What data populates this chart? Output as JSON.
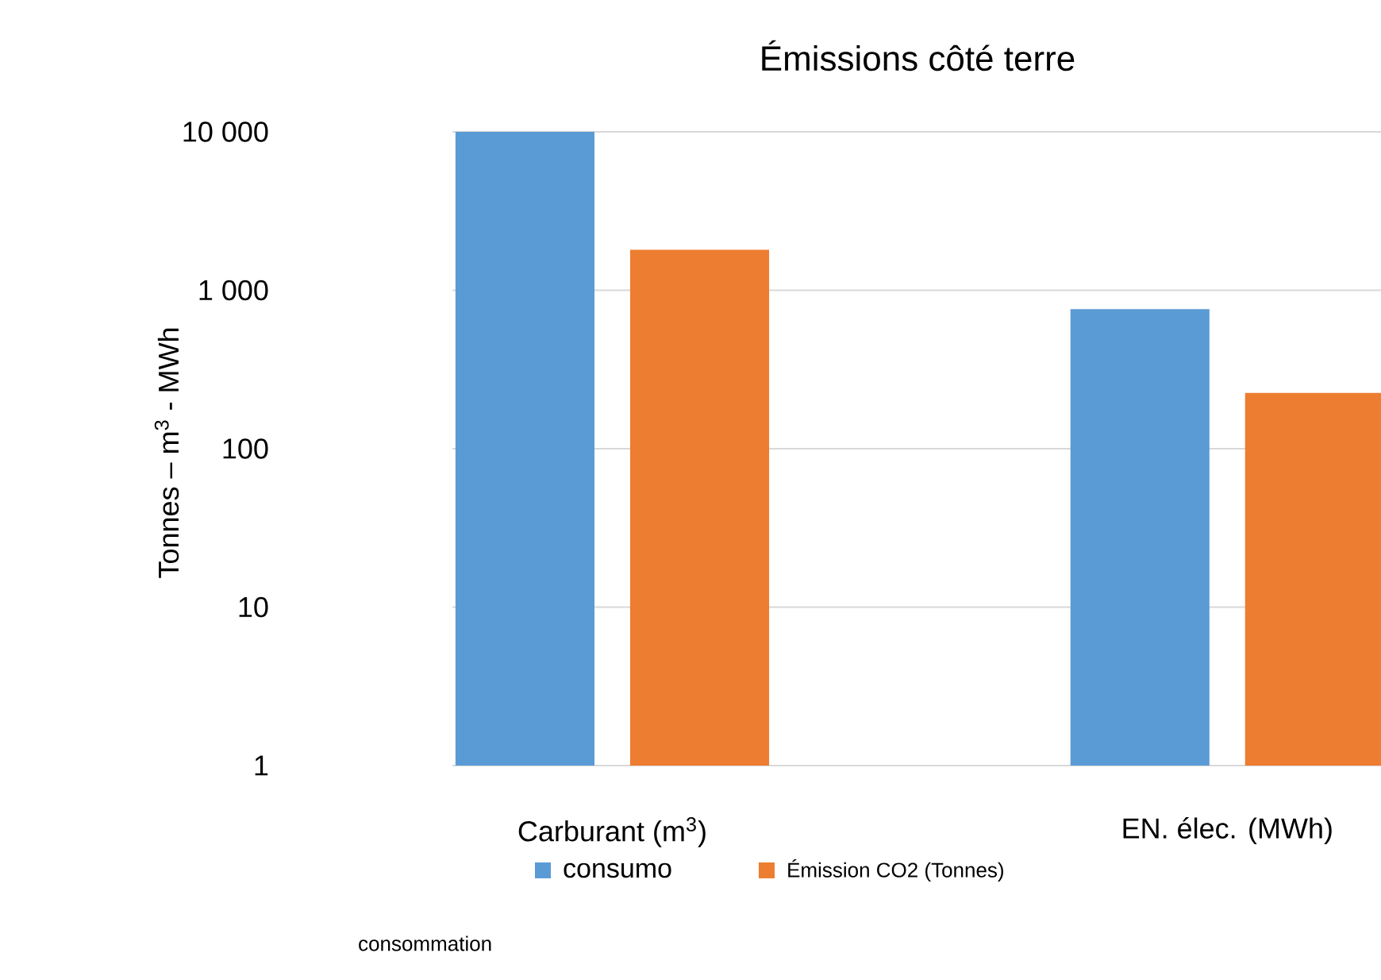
{
  "chart_data": {
    "type": "bar",
    "title": "Émissions côté terre",
    "ylabel": "Tonnes – m$^{3}$ - MWh",
    "categories": [
      "Carburant (m$^{3}$)",
      "EN. élec. (MWh)"
    ],
    "series": [
      {
        "name": "consumo",
        "color": "#5b9bd5",
        "values": [
          10000,
          760
        ]
      },
      {
        "name": "Émission CO2 (Tonnes)",
        "color": "#ed7d31",
        "values": [
          1800,
          225
        ]
      }
    ],
    "log": true,
    "ylim": [
      1,
      10000
    ],
    "yticks": [
      1,
      10,
      100,
      {
        "value": 1000,
        "label": "1 000"
      },
      {
        "value": 10000,
        "label": "10 000"
      }
    ],
    "grid": "y",
    "legend": "bottom",
    "annotations": [
      "consommation"
    ]
  }
}
